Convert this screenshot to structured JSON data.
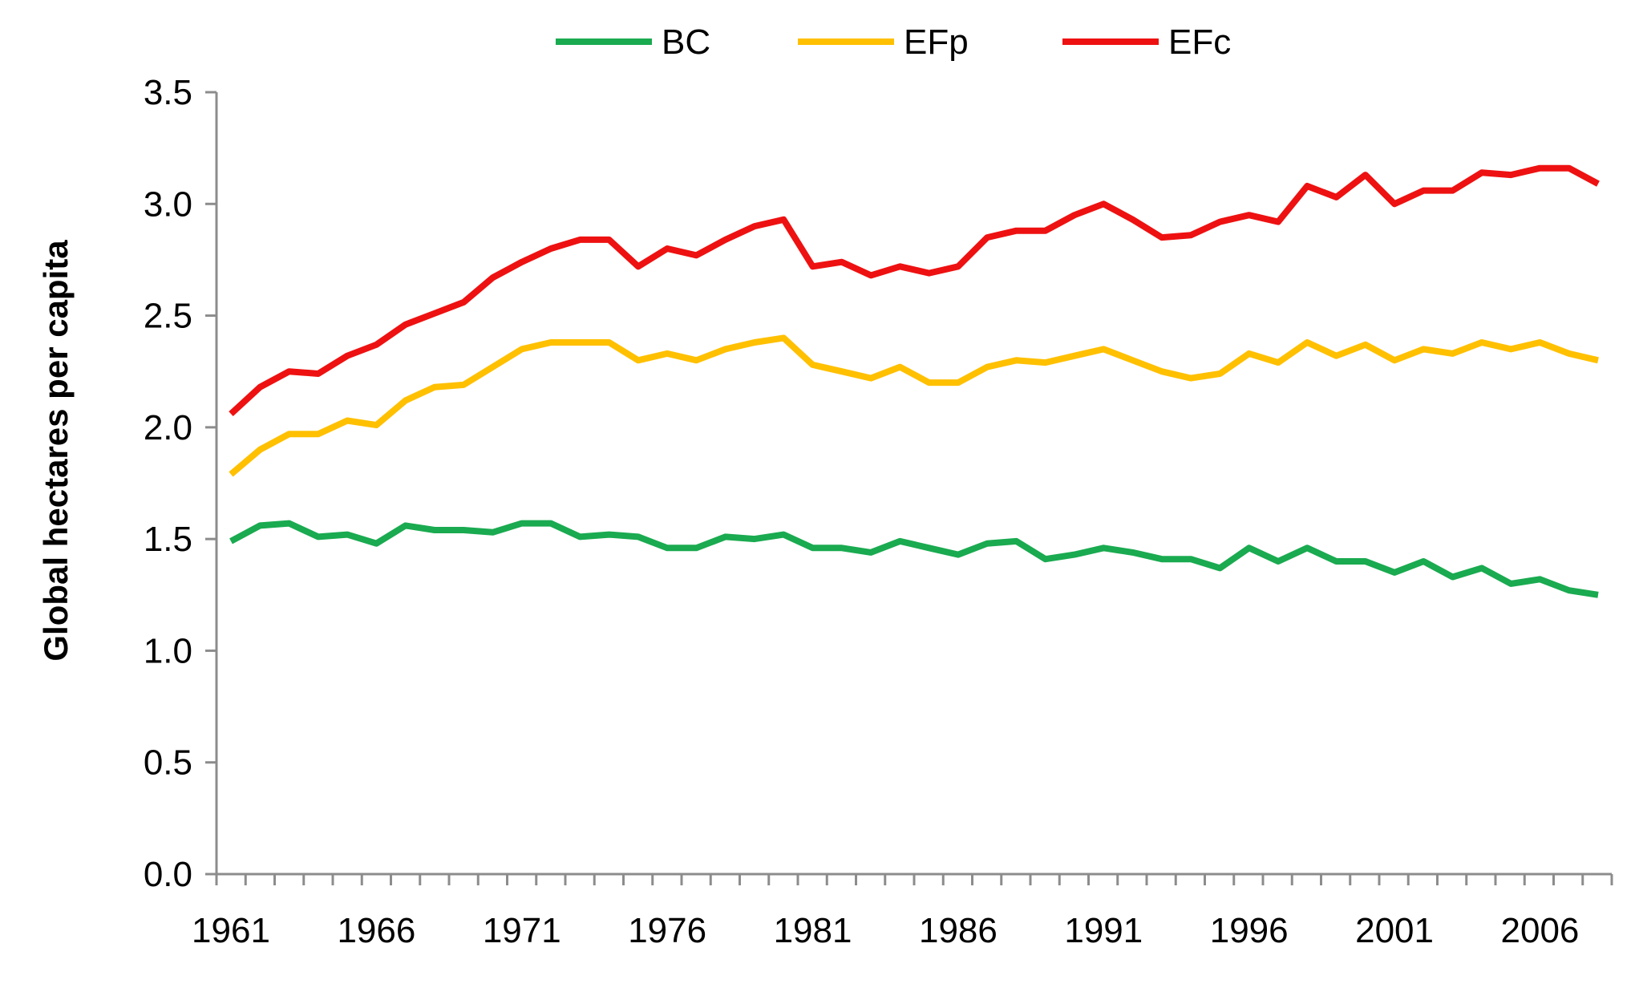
{
  "chart_data": {
    "type": "line",
    "title": "",
    "xlabel": "",
    "ylabel": "Global hectares per capita",
    "ylim": [
      0,
      3.5
    ],
    "y_ticks": [
      "0.0",
      "0.5",
      "1.0",
      "1.5",
      "2.0",
      "2.5",
      "3.0",
      "3.5"
    ],
    "x_tick_labels": [
      "1961",
      "1966",
      "1971",
      "1976",
      "1981",
      "1986",
      "1991",
      "1996",
      "2001",
      "2006"
    ],
    "legend_position": "top",
    "gridlines": false,
    "x": [
      1961,
      1962,
      1963,
      1964,
      1965,
      1966,
      1967,
      1968,
      1969,
      1970,
      1971,
      1972,
      1973,
      1974,
      1975,
      1976,
      1977,
      1978,
      1979,
      1980,
      1981,
      1982,
      1983,
      1984,
      1985,
      1986,
      1987,
      1988,
      1989,
      1990,
      1991,
      1992,
      1993,
      1994,
      1995,
      1996,
      1997,
      1998,
      1999,
      2000,
      2001,
      2002,
      2003,
      2004,
      2005,
      2006,
      2007,
      2008
    ],
    "series": [
      {
        "name": "BC",
        "color": "#1aaa50",
        "values": [
          1.49,
          1.56,
          1.57,
          1.51,
          1.52,
          1.48,
          1.56,
          1.54,
          1.54,
          1.53,
          1.57,
          1.57,
          1.51,
          1.52,
          1.51,
          1.46,
          1.46,
          1.51,
          1.5,
          1.52,
          1.46,
          1.46,
          1.44,
          1.49,
          1.46,
          1.43,
          1.48,
          1.49,
          1.41,
          1.43,
          1.46,
          1.44,
          1.41,
          1.41,
          1.37,
          1.46,
          1.4,
          1.46,
          1.4,
          1.4,
          1.35,
          1.4,
          1.33,
          1.37,
          1.3,
          1.32,
          1.27,
          1.25
        ]
      },
      {
        "name": "EFp",
        "color": "#ffc000",
        "values": [
          1.79,
          1.9,
          1.97,
          1.97,
          2.03,
          2.01,
          2.12,
          2.18,
          2.19,
          2.27,
          2.35,
          2.38,
          2.38,
          2.38,
          2.3,
          2.33,
          2.3,
          2.35,
          2.38,
          2.4,
          2.28,
          2.25,
          2.22,
          2.27,
          2.2,
          2.2,
          2.27,
          2.3,
          2.29,
          2.32,
          2.35,
          2.3,
          2.25,
          2.22,
          2.24,
          2.33,
          2.29,
          2.38,
          2.32,
          2.37,
          2.3,
          2.35,
          2.33,
          2.38,
          2.35,
          2.38,
          2.33,
          2.3
        ]
      },
      {
        "name": "EFc",
        "color": "#ee1111",
        "values": [
          2.06,
          2.18,
          2.25,
          2.24,
          2.32,
          2.37,
          2.46,
          2.51,
          2.56,
          2.67,
          2.74,
          2.8,
          2.84,
          2.84,
          2.72,
          2.8,
          2.77,
          2.84,
          2.9,
          2.93,
          2.72,
          2.74,
          2.68,
          2.72,
          2.69,
          2.72,
          2.85,
          2.88,
          2.88,
          2.95,
          3.0,
          2.93,
          2.85,
          2.86,
          2.92,
          2.95,
          2.92,
          3.08,
          3.03,
          3.13,
          3.0,
          3.06,
          3.06,
          3.14,
          3.13,
          3.16,
          3.16,
          3.09
        ]
      }
    ]
  }
}
